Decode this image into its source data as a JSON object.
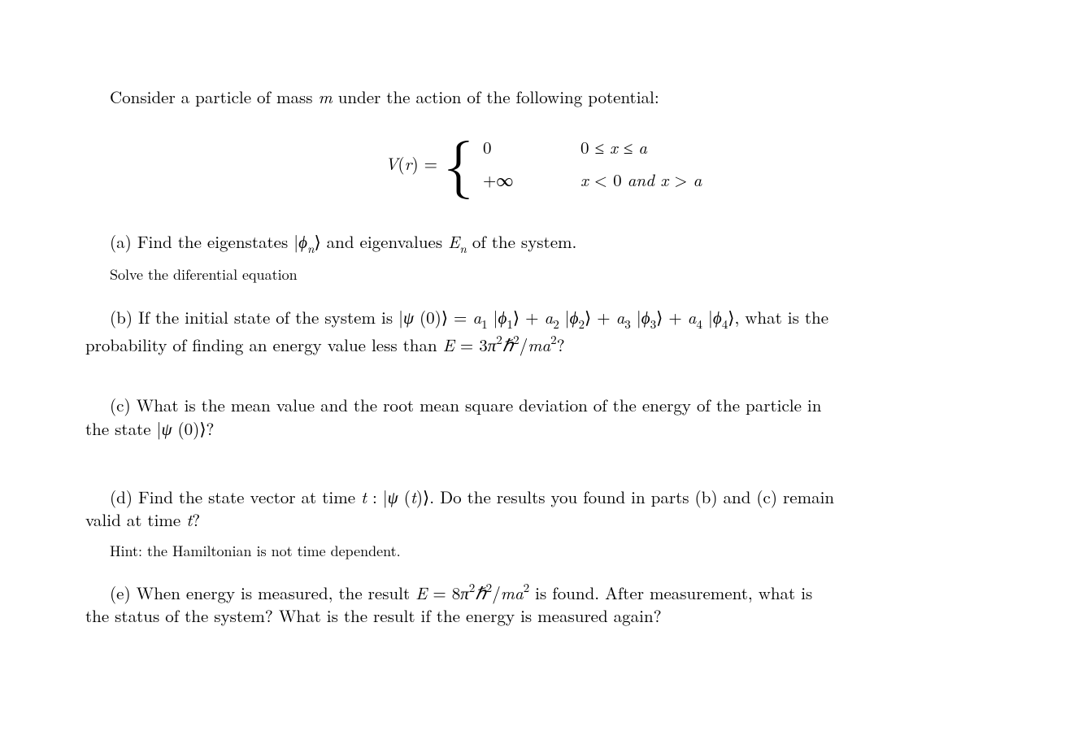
{
  "intro": {
    "prefix": "Consider a particle of mass ",
    "m": "m",
    "suffix": " under the action of the following potential:"
  },
  "equation": {
    "lhs_V": "V",
    "lhs_r": "r",
    "equals": " = ",
    "case1_value_zero": "0",
    "case1_cond_prefix": "0 ≤ ",
    "case1_cond_x": "x",
    "case1_cond_mid": " ≤ ",
    "case1_cond_a": "a",
    "case2_value": "+∞",
    "case2_cond_x1": "x",
    "case2_cond_lt0": " < 0 ",
    "case2_cond_and": "and ",
    "case2_cond_x2": "x",
    "case2_cond_gt": " > ",
    "case2_cond_a": "a"
  },
  "partA": {
    "label": "(a) Find the eigenstates |",
    "phi": "ϕ",
    "sub_n": "n",
    "mid": "⟩ and eigenvalues ",
    "E": "E",
    "sub_n2": "n",
    "suffix": " of the system.",
    "hint": "Solve the diferential equation"
  },
  "partB": {
    "line1_prefix": "(b) If the initial state of the system is |",
    "psi": "ψ",
    "zero_arg": " (0)⟩ = ",
    "a1": "a",
    "s1": "1",
    "k1_open": " |",
    "phi1": "ϕ",
    "phi1s": "1",
    "k1_close": "⟩ + ",
    "a2": "a",
    "s2": "2",
    "k2_open": " |",
    "phi2": "ϕ",
    "phi2s": "2",
    "k2_close": "⟩ + ",
    "a3": "a",
    "s3": "3",
    "k3_open": " |",
    "phi3": "ϕ",
    "phi3s": "3",
    "k3_close": "⟩ + ",
    "a4": "a",
    "s4": "4",
    "k4_open": " |",
    "phi4": "ϕ",
    "phi4s": "4",
    "k4_close": "⟩, what is the",
    "line2_prefix": "probability of finding an energy value less than ",
    "E": "E",
    "eq": " = 3",
    "pi": "π",
    "pisup": "2",
    "hbar": "ℏ",
    "hbarsup": "2",
    "slash": "/",
    "m": "m",
    "a": "a",
    "asup": "2",
    "q": "?"
  },
  "partC": {
    "line1": "(c) What is the mean value and the root mean square deviation of the energy of the particle in",
    "line2_prefix": "the state |",
    "psi": "ψ",
    "arg": " (0)⟩?",
    "suffix": ""
  },
  "partD": {
    "line1_prefix": "(d) Find the state vector at time ",
    "t": "t",
    "colon": " : |",
    "psi": "ψ",
    "arg_open": " (",
    "t2": "t",
    "arg_close": ")⟩. Do the results you found in parts (b) and (c) remain",
    "line2_prefix": "valid at time ",
    "t3": "t",
    "q": "?",
    "hint": "Hint: the Hamiltonian is not time dependent."
  },
  "partE": {
    "line1_prefix": "(e) When energy is measured, the result ",
    "E": "E",
    "eq": " = 8",
    "pi": "π",
    "pisup": "2",
    "hbar": "ℏ",
    "hbarsup": "2",
    "slash": "/",
    "m": "m",
    "a": "a",
    "asup": "2",
    "after": " is found. After measurement, what is",
    "line2": "the status of the system? What is the result if the energy is measured again?"
  }
}
